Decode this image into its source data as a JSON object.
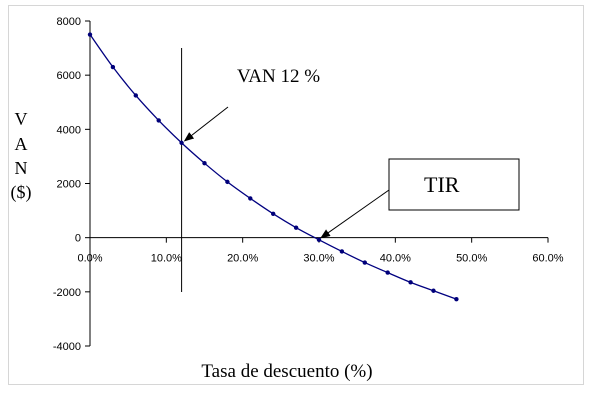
{
  "chart_data": {
    "type": "scatter",
    "xlabel": "Tasa de descuento (%)",
    "ylabel_lines": [
      "V",
      "A",
      "N",
      "($)"
    ],
    "xlim": [
      0,
      60
    ],
    "ylim": [
      -4000,
      8000
    ],
    "x_ticks": [
      0,
      10,
      20,
      30,
      40,
      50,
      60
    ],
    "x_tick_labels": [
      "0.0%",
      "10.0%",
      "20.0%",
      "30.0%",
      "40.0%",
      "50.0%",
      "60.0%"
    ],
    "y_ticks": [
      -4000,
      -2000,
      0,
      2000,
      4000,
      6000,
      8000
    ],
    "y_tick_labels": [
      "-4000",
      "-2000",
      "0",
      "2000",
      "4000",
      "6000",
      "8000"
    ],
    "grid": false,
    "series": [
      {
        "x": [
          0,
          3,
          6,
          9,
          12,
          15,
          18,
          21,
          24,
          27,
          30,
          33,
          36,
          39,
          42,
          45,
          48
        ],
        "values": [
          7500,
          6300,
          5250,
          4330,
          3500,
          2750,
          2060,
          1450,
          880,
          370,
          -80,
          -510,
          -920,
          -1290,
          -1650,
          -1960,
          -2270
        ],
        "color": "#000080",
        "marker_color": "#00007a"
      }
    ],
    "vertical_line_x": 12,
    "annotations": [
      {
        "text": "VAN 12 %",
        "arrow_to": [
          12,
          3500
        ]
      },
      {
        "text": "TIR",
        "arrow_to": [
          30,
          -80
        ],
        "boxed": true
      }
    ]
  }
}
